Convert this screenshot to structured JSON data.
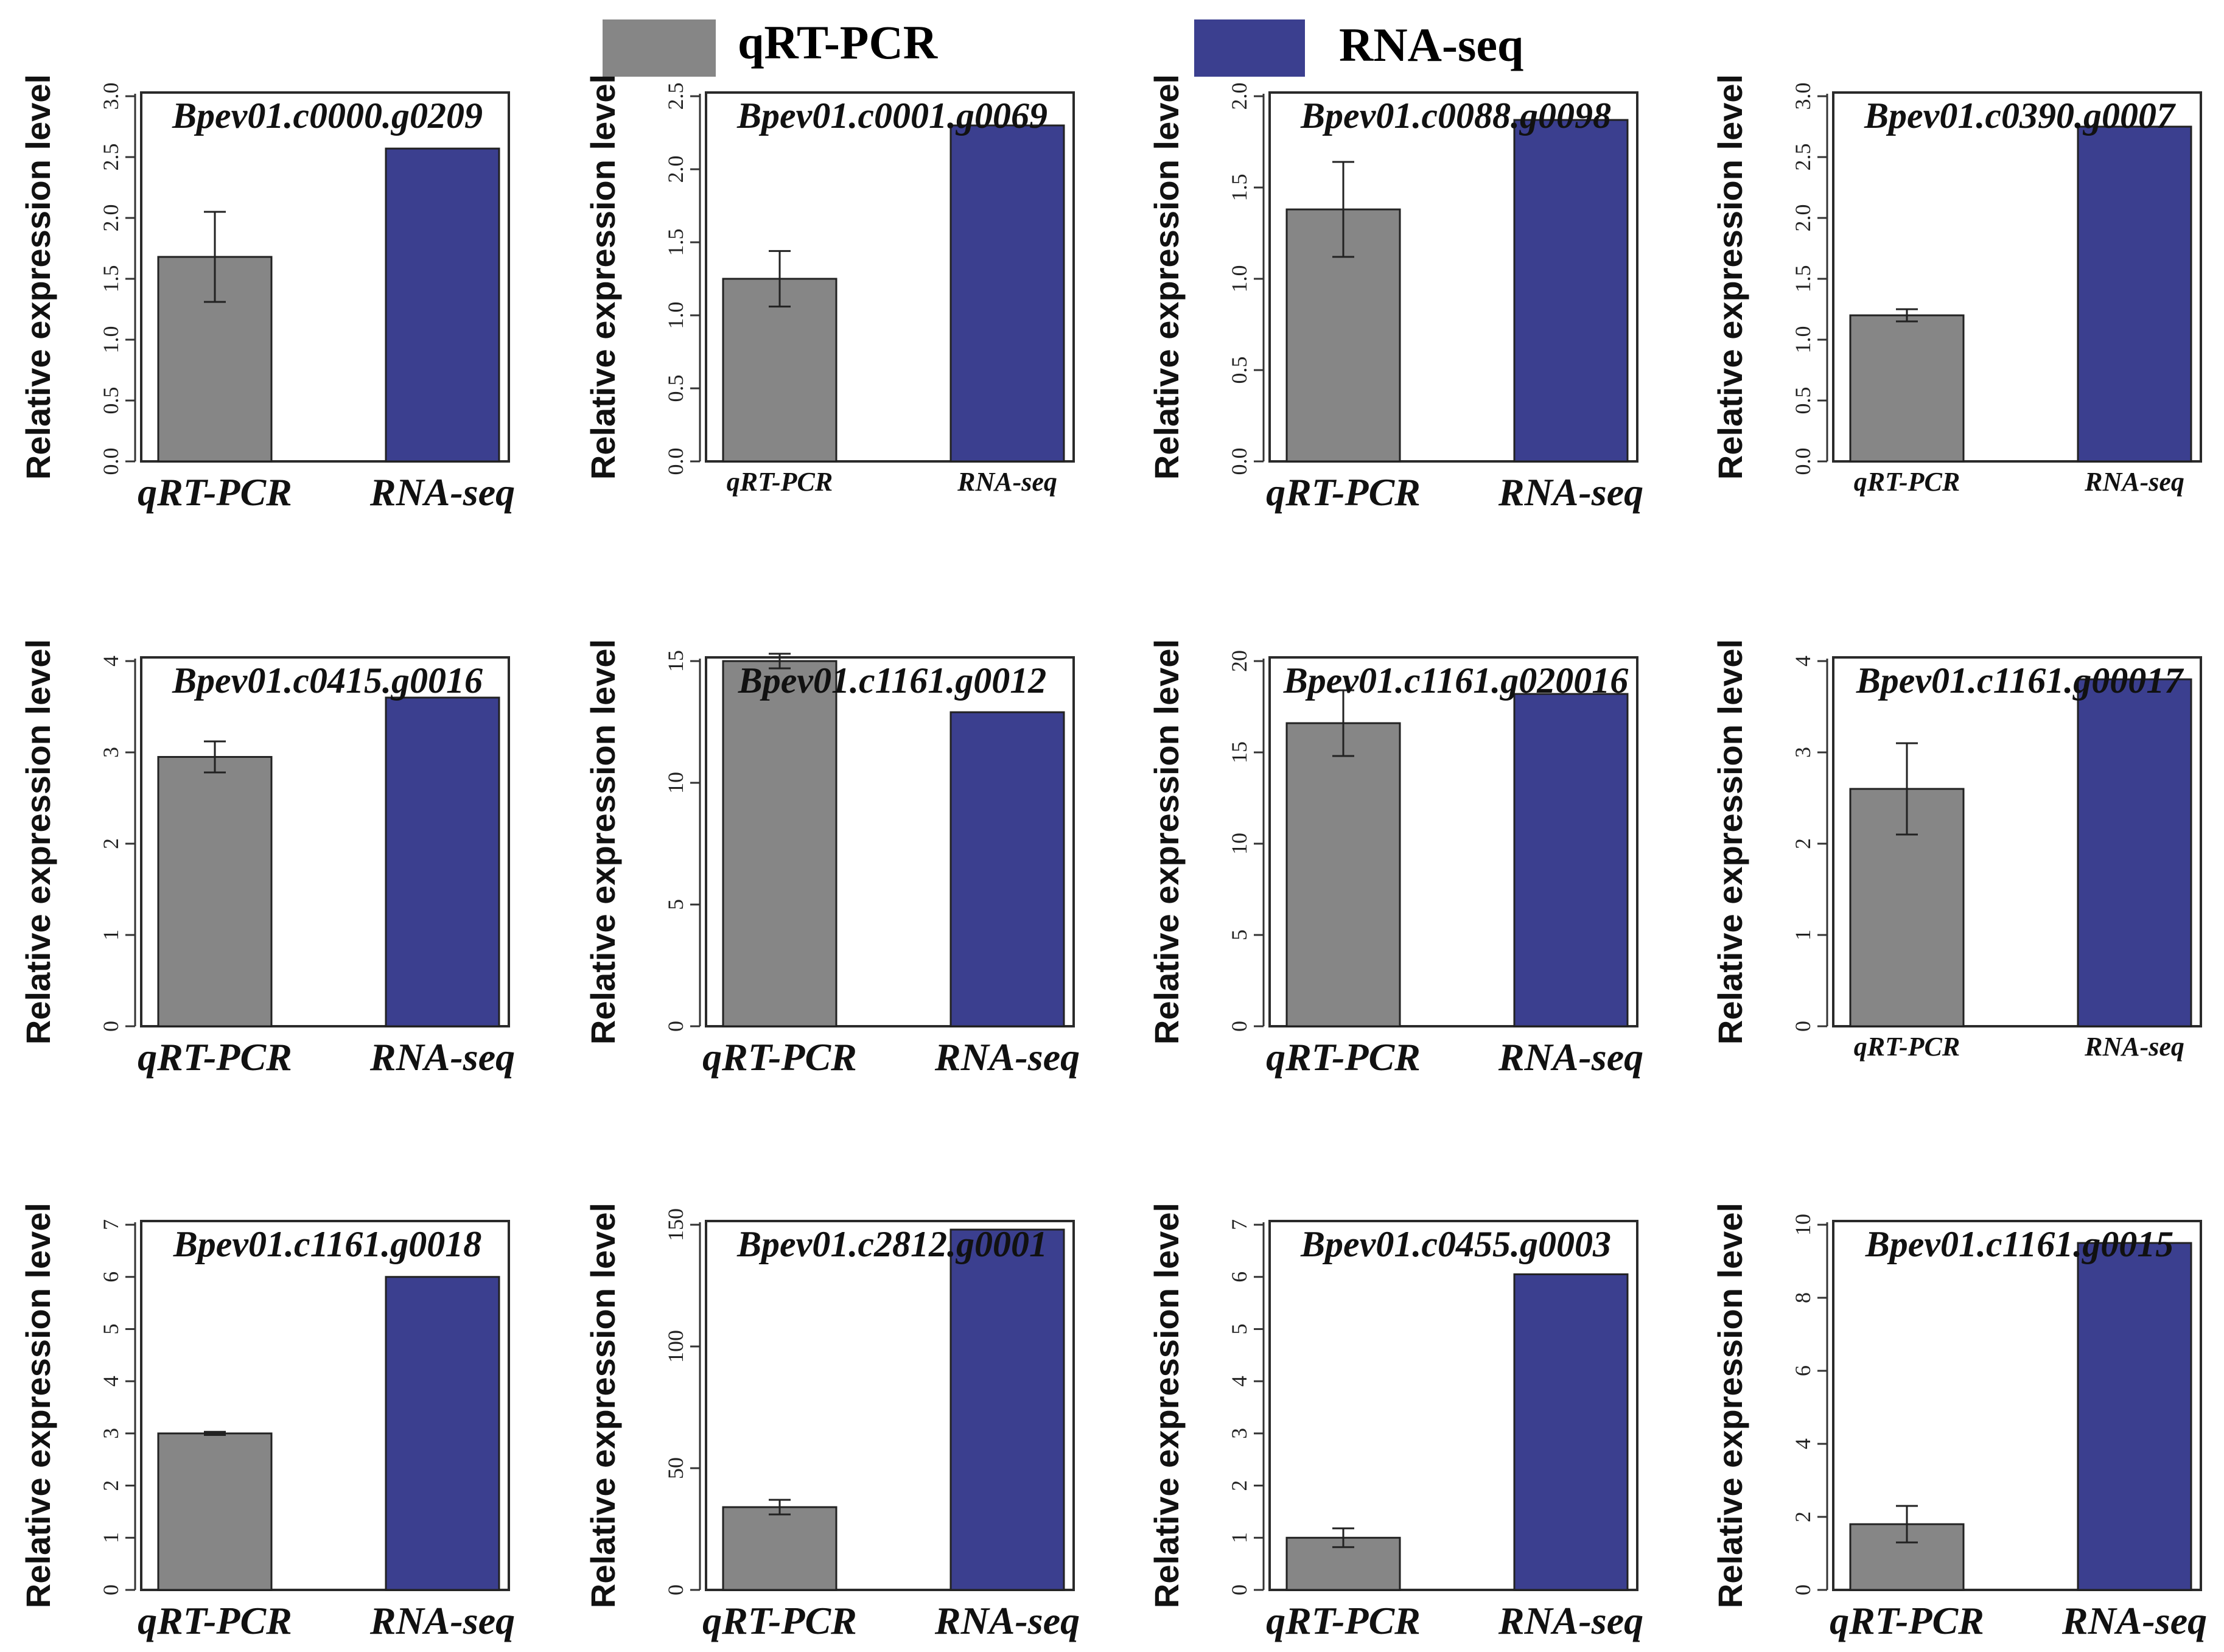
{
  "legend": {
    "items": [
      {
        "label": "qRT-PCR",
        "color": "#868686"
      },
      {
        "label": "RNA-seq",
        "color": "#3b3f8f"
      }
    ]
  },
  "chart_data": [
    {
      "type": "bar",
      "title": "Bpev01.c0000.g0209",
      "ylabel": "Relative expression level",
      "categories": [
        "qRT-PCR",
        "RNA-seq"
      ],
      "values": [
        1.68,
        2.57
      ],
      "errors": [
        0.37,
        0
      ],
      "ylim": [
        0,
        3.0
      ],
      "yticks": [
        "0.0",
        "0.5",
        "1.0",
        "1.5",
        "2.0",
        "2.5",
        "3.0"
      ]
    },
    {
      "type": "bar",
      "title": "Bpev01.c0001.g0069",
      "ylabel": "Relative expression level",
      "categories": [
        "qRT-PCR",
        "RNA-seq"
      ],
      "values": [
        1.25,
        2.3
      ],
      "errors": [
        0.19,
        0
      ],
      "ylim": [
        0,
        2.5
      ],
      "yticks": [
        "0.0",
        "0.5",
        "1.0",
        "1.5",
        "2.0",
        "2.5"
      ]
    },
    {
      "type": "bar",
      "title": "Bpev01.c0088.g0098",
      "ylabel": "Relative expression level",
      "categories": [
        "qRT-PCR",
        "RNA-seq"
      ],
      "values": [
        1.38,
        1.87
      ],
      "errors": [
        0.26,
        0
      ],
      "ylim": [
        0,
        2.0
      ],
      "yticks": [
        "0.0",
        "0.5",
        "1.0",
        "1.5",
        "2.0"
      ]
    },
    {
      "type": "bar",
      "title": "Bpev01.c0390.g0007",
      "ylabel": "Relative expression level",
      "categories": [
        "qRT-PCR",
        "RNA-seq"
      ],
      "values": [
        1.2,
        2.75
      ],
      "errors": [
        0.05,
        0
      ],
      "ylim": [
        0,
        3.0
      ],
      "yticks": [
        "0.0",
        "0.5",
        "1.0",
        "1.5",
        "2.0",
        "2.5",
        "3.0"
      ]
    },
    {
      "type": "bar",
      "title": "Bpev01.c0415.g0016",
      "ylabel": "Relative expression level",
      "categories": [
        "qRT-PCR",
        "RNA-seq"
      ],
      "values": [
        2.95,
        3.6
      ],
      "errors": [
        0.17,
        0
      ],
      "ylim": [
        0,
        4
      ],
      "yticks": [
        "0",
        "1",
        "2",
        "3",
        "4"
      ]
    },
    {
      "type": "bar",
      "title": "Bpev01.c1161.g0012",
      "ylabel": "Relative expression level",
      "categories": [
        "qRT-PCR",
        "RNA-seq"
      ],
      "values": [
        15.0,
        12.9
      ],
      "errors": [
        0.3,
        0
      ],
      "ylim": [
        0,
        15
      ],
      "yticks": [
        "0",
        "5",
        "10",
        "15"
      ]
    },
    {
      "type": "bar",
      "title": "Bpev01.c1161.g020016",
      "ylabel": "Relative expression level",
      "categories": [
        "qRT-PCR",
        "RNA-seq"
      ],
      "values": [
        16.6,
        18.2
      ],
      "errors": [
        1.8,
        0
      ],
      "ylim": [
        0,
        20
      ],
      "yticks": [
        "0",
        "5",
        "10",
        "15",
        "20"
      ]
    },
    {
      "type": "bar",
      "title": "Bpev01.c1161.g00017",
      "ylabel": "Relative expression level",
      "categories": [
        "qRT-PCR",
        "RNA-seq"
      ],
      "values": [
        2.6,
        3.8
      ],
      "errors": [
        0.5,
        0
      ],
      "ylim": [
        0,
        4
      ],
      "yticks": [
        "0",
        "1",
        "2",
        "3",
        "4"
      ]
    },
    {
      "type": "bar",
      "title": "Bpev01.c1161.g0018",
      "ylabel": "Relative expression level",
      "categories": [
        "qRT-PCR",
        "RNA-seq"
      ],
      "values": [
        3.0,
        6.0
      ],
      "errors": [
        0.03,
        0
      ],
      "ylim": [
        0,
        7
      ],
      "yticks": [
        "0",
        "1",
        "2",
        "3",
        "4",
        "5",
        "6",
        "7"
      ]
    },
    {
      "type": "bar",
      "title": "Bpev01.c2812.g0001",
      "ylabel": "Relative expression level",
      "categories": [
        "qRT-PCR",
        "RNA-seq"
      ],
      "values": [
        34,
        148
      ],
      "errors": [
        3,
        0
      ],
      "ylim": [
        0,
        150
      ],
      "yticks": [
        "0",
        "50",
        "100",
        "150"
      ]
    },
    {
      "type": "bar",
      "title": "Bpev01.c0455.g0003",
      "ylabel": "Relative expression level",
      "categories": [
        "qRT-PCR",
        "RNA-seq"
      ],
      "values": [
        1.0,
        6.05
      ],
      "errors": [
        0.18,
        0
      ],
      "ylim": [
        0,
        7
      ],
      "yticks": [
        "0",
        "1",
        "2",
        "3",
        "4",
        "5",
        "6",
        "7"
      ]
    },
    {
      "type": "bar",
      "title": "Bpev01.c1161.g0015",
      "ylabel": "Relative expression level",
      "categories": [
        "qRT-PCR",
        "RNA-seq"
      ],
      "values": [
        1.8,
        9.5
      ],
      "errors": [
        0.5,
        0
      ],
      "ylim": [
        0,
        10
      ],
      "yticks": [
        "0",
        "2",
        "4",
        "6",
        "8",
        "10"
      ]
    }
  ]
}
